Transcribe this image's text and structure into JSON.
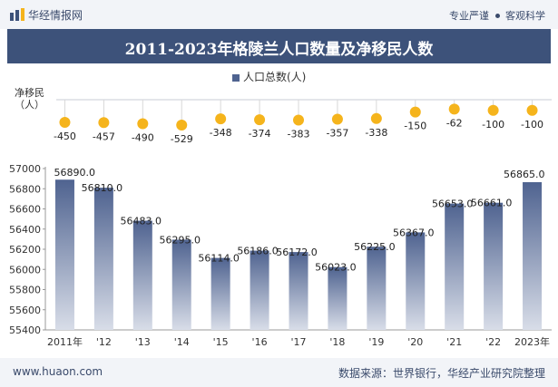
{
  "header": {
    "site_name": "华经情报网",
    "tag_1": "专业严谨",
    "tag_2": "客观科学"
  },
  "title": "2011-2023年格陵兰人口数量及净移民人数",
  "legend": {
    "label": "人口总数(人)"
  },
  "net_migration_label_line1": "净移民",
  "net_migration_label_line2": "（人）",
  "footer": {
    "url": "www.huaon.com",
    "source": "数据来源：世界银行，华经产业研究院整理"
  },
  "colors": {
    "bar_top": "#4f6390",
    "bar_bottom": "#d8dde8",
    "dot": "#f5b41c",
    "title_bg": "#3d527a"
  },
  "chart_data": {
    "type": "bar",
    "categories": [
      "2011年",
      "'12",
      "'13",
      "'14",
      "'15",
      "'16",
      "'17",
      "'18",
      "'19",
      "'20",
      "'21",
      "'22",
      "2023年"
    ],
    "series": [
      {
        "name": "人口总数(人)",
        "values": [
          56890.0,
          56810.0,
          56483.0,
          56295.0,
          56114.0,
          56186.0,
          56172.0,
          56023.0,
          56225.0,
          56367.0,
          56653.0,
          56661.0,
          56865.0
        ],
        "labels": [
          "56890.0",
          "56810.0",
          "56483.0",
          "56295.0",
          "56114.0",
          "56186.0",
          "56172.0",
          "56023.0",
          "56225.0",
          "56367.0",
          "56653.0",
          "56661.0",
          "56865.0"
        ]
      },
      {
        "name": "净移民（人）",
        "values": [
          -450,
          -457,
          -490,
          -529,
          -348,
          -374,
          -383,
          -357,
          -338,
          -150,
          -62,
          -100,
          -100
        ]
      }
    ],
    "yticks": [
      "55400",
      "55600",
      "55800",
      "56000",
      "56200",
      "56400",
      "56600",
      "56800",
      "57000"
    ],
    "ylim": [
      55400,
      57000
    ]
  }
}
